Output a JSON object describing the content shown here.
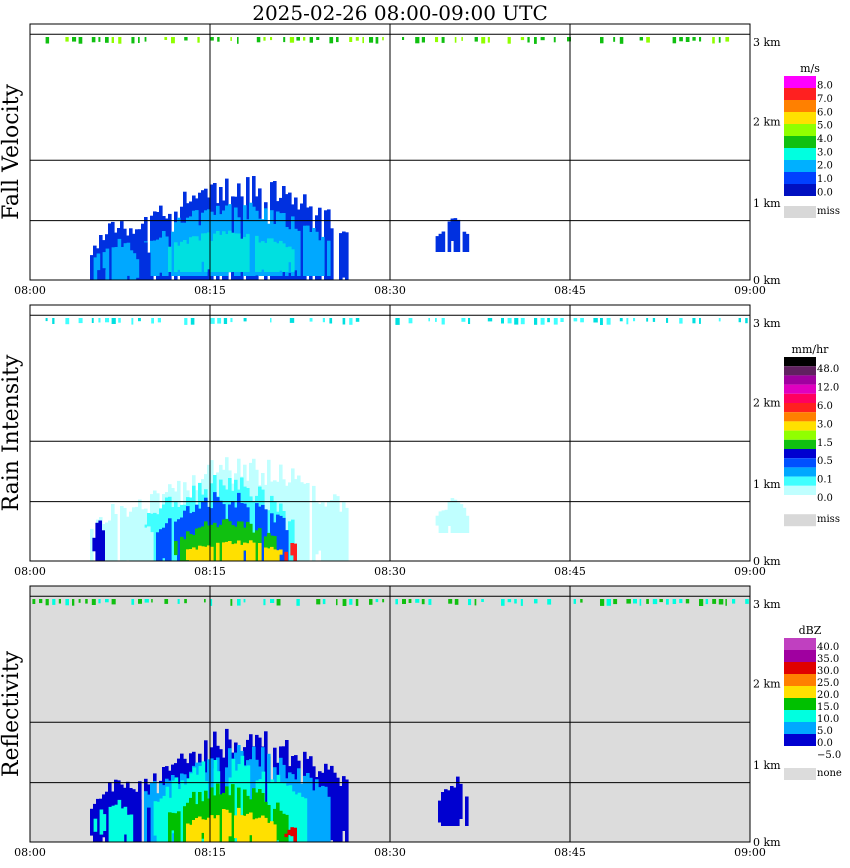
{
  "title": "2025-02-26   08:00-09:00 UTC",
  "chart_data": [
    {
      "type": "heatmap",
      "ylabel": "Fall Velocity",
      "x_ticks": [
        "08:00",
        "08:15",
        "08:30",
        "08:45",
        "09:00"
      ],
      "y_ticks": [
        "0 km",
        "1 km",
        "2 km",
        "3 km"
      ],
      "xlim": [
        "08:00",
        "09:00"
      ],
      "ylim_km": [
        0,
        3.2
      ],
      "grid": true,
      "background": "#ffffff",
      "legend": {
        "unit": "m/s",
        "labels": [
          "8.0",
          "7.0",
          "6.0",
          "5.0",
          "4.0",
          "3.0",
          "2.0",
          "1.0",
          "0.0"
        ],
        "colors": [
          "#ff00ff",
          "#ff2020",
          "#ff8000",
          "#ffe000",
          "#90ff00",
          "#10c010",
          "#00ffe0",
          "#00b0ff",
          "#0040ff",
          "#0010c0"
        ],
        "missing_label": "miss",
        "missing_color": "#d8d8d8"
      },
      "blobs": [
        {
          "t0": 8.5,
          "t1": 26.5,
          "h0": 0.0,
          "h1": 1.2,
          "color": "#0030e0"
        },
        {
          "t0": 9.5,
          "t1": 25.0,
          "h0": 0.05,
          "h1": 0.9,
          "color": "#00a8ff"
        },
        {
          "t0": 11.0,
          "t1": 22.0,
          "h0": 0.1,
          "h1": 0.6,
          "color": "#00e0e0"
        },
        {
          "t0": 5.0,
          "t1": 9.8,
          "h0": 0.0,
          "h1": 0.7,
          "color": "#0030e0"
        },
        {
          "t0": 5.3,
          "t1": 9.0,
          "h0": 0.0,
          "h1": 0.5,
          "color": "#00a8ff"
        },
        {
          "t0": 33.8,
          "t1": 36.5,
          "h0": 0.35,
          "h1": 0.75,
          "color": "#0030e0"
        }
      ],
      "top_band_colors": [
        "#90ff00",
        "#10c010"
      ]
    },
    {
      "type": "heatmap",
      "ylabel": "Rain Intensity",
      "x_ticks": [
        "08:00",
        "08:15",
        "08:30",
        "08:45",
        "09:00"
      ],
      "y_ticks": [
        "0 km",
        "1 km",
        "2 km",
        "3 km"
      ],
      "xlim": [
        "08:00",
        "09:00"
      ],
      "ylim_km": [
        0,
        3.2
      ],
      "grid": true,
      "background": "#ffffff",
      "legend": {
        "unit": "mm/hr",
        "labels": [
          "48.0",
          "12.0",
          "6.0",
          "3.0",
          "1.5",
          "0.5",
          "0.1",
          "0.0"
        ],
        "colors": [
          "#000000",
          "#602060",
          "#a000a0",
          "#e000c0",
          "#ff0060",
          "#ff2020",
          "#ff8000",
          "#ffe000",
          "#90ff00",
          "#10c010",
          "#0000d0",
          "#0050ff",
          "#00a8ff",
          "#40ffff",
          "#c0ffff",
          "#ffffff"
        ],
        "missing_label": "miss",
        "missing_color": "#d8d8d8"
      },
      "blobs": [
        {
          "t0": 8.5,
          "t1": 26.5,
          "h0": 0.0,
          "h1": 1.2,
          "color": "#c0ffff"
        },
        {
          "t0": 9.5,
          "t1": 22.0,
          "h0": 0.0,
          "h1": 1.0,
          "color": "#40ffff"
        },
        {
          "t0": 10.5,
          "t1": 21.5,
          "h0": 0.0,
          "h1": 0.8,
          "color": "#0050ff"
        },
        {
          "t0": 12.0,
          "t1": 20.5,
          "h0": 0.0,
          "h1": 0.5,
          "color": "#10c010"
        },
        {
          "t0": 13.0,
          "t1": 21.0,
          "h0": 0.0,
          "h1": 0.25,
          "color": "#ffe000"
        },
        {
          "t0": 21.2,
          "t1": 22.2,
          "h0": 0.0,
          "h1": 0.25,
          "color": "#ff2020"
        },
        {
          "t0": 5.0,
          "t1": 10.2,
          "h0": 0.0,
          "h1": 0.7,
          "color": "#c0ffff"
        },
        {
          "t0": 5.2,
          "t1": 6.0,
          "h0": 0.0,
          "h1": 0.55,
          "color": "#0000d0"
        },
        {
          "t0": 33.8,
          "t1": 36.5,
          "h0": 0.35,
          "h1": 0.75,
          "color": "#c0ffff"
        }
      ],
      "top_band_colors": [
        "#40ffff",
        "#00e0e0"
      ]
    },
    {
      "type": "heatmap",
      "ylabel": "Reflectivity",
      "x_ticks": [
        "08:00",
        "08:15",
        "08:30",
        "08:45",
        "09:00"
      ],
      "y_ticks": [
        "0 km",
        "1 km",
        "2 km",
        "3 km"
      ],
      "xlim": [
        "08:00",
        "09:00"
      ],
      "ylim_km": [
        0,
        3.2
      ],
      "grid": true,
      "background": "#dcdcdc",
      "legend": {
        "unit": "dBZ",
        "labels": [
          "40.0",
          "35.0",
          "30.0",
          "25.0",
          "20.0",
          "15.0",
          "10.0",
          "5.0",
          "0.0",
          "−5.0"
        ],
        "colors": [
          "#c040c0",
          "#a000a0",
          "#e00000",
          "#ff8000",
          "#ffe000",
          "#00c000",
          "#00ffe0",
          "#00a8ff",
          "#0000d0",
          "#ffffff"
        ],
        "missing_label": "none",
        "missing_color": "#dcdcdc"
      },
      "blobs": [
        {
          "t0": 8.5,
          "t1": 26.5,
          "h0": 0.0,
          "h1": 1.3,
          "color": "#0000d0"
        },
        {
          "t0": 9.5,
          "t1": 25.0,
          "h0": 0.0,
          "h1": 1.15,
          "color": "#00a8ff"
        },
        {
          "t0": 10.3,
          "t1": 23.0,
          "h0": 0.0,
          "h1": 1.0,
          "color": "#00ffe0"
        },
        {
          "t0": 11.5,
          "t1": 21.5,
          "h0": 0.0,
          "h1": 0.7,
          "color": "#00c000"
        },
        {
          "t0": 13.0,
          "t1": 20.5,
          "h0": 0.0,
          "h1": 0.4,
          "color": "#ffe000"
        },
        {
          "t0": 21.2,
          "t1": 22.2,
          "h0": 0.0,
          "h1": 0.2,
          "color": "#e00000"
        },
        {
          "t0": 5.0,
          "t1": 10.0,
          "h0": 0.0,
          "h1": 0.75,
          "color": "#0000d0"
        },
        {
          "t0": 5.3,
          "t1": 8.5,
          "h0": 0.0,
          "h1": 0.5,
          "color": "#00ffe0"
        },
        {
          "t0": 34.0,
          "t1": 36.5,
          "h0": 0.2,
          "h1": 0.8,
          "color": "#0000d0"
        }
      ],
      "top_band_colors": [
        "#10c010",
        "#00ffe0"
      ]
    }
  ]
}
